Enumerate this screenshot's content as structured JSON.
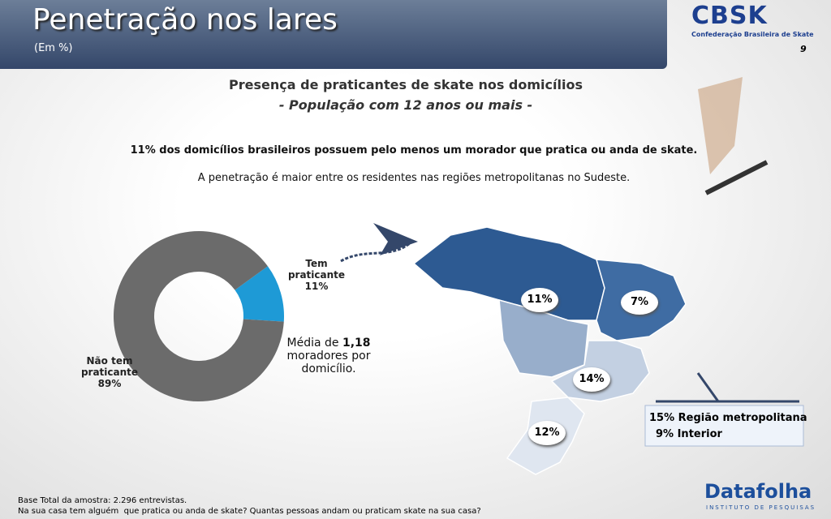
{
  "header": {
    "title": "Penetração nos lares",
    "subtitle": "(Em %)",
    "logo": "CBSK",
    "logo_caption": "Confederação Brasileira de Skate",
    "page": "9"
  },
  "heading": {
    "title": "Presença de praticantes de skate nos domicílios",
    "subtitle": "- População com 12 anos ou mais -"
  },
  "notes": [
    "11% dos domicílios brasileiros possuem pelo menos um morador que pratica ou anda de skate.",
    "A penetração é maior entre os residentes nas regiões metropolitanas no Sudeste."
  ],
  "chart_data": {
    "type": "pie",
    "donut": true,
    "categories": [
      "Tem praticante",
      "Não tem praticante"
    ],
    "values": [
      11,
      89
    ],
    "value_labels": [
      "11%",
      "89%"
    ],
    "colors": [
      "#1e9ad6",
      "#6b6b6b"
    ]
  },
  "average": {
    "prefix": "Média de",
    "value": "1,18",
    "suffix": "moradores por domicílio."
  },
  "map": {
    "regions": [
      {
        "label": "11%"
      },
      {
        "label": "7%"
      },
      {
        "label": "14%"
      },
      {
        "label": "12%"
      }
    ],
    "callout": [
      "15% Região metropolitana",
      "9% Interior"
    ]
  },
  "footer": {
    "base": "Base Total da amostra: 2.296 entrevistas.",
    "question": "Na sua casa tem alguém  que pratica ou anda de skate? Quantas pessoas andam ou praticam skate na sua casa?",
    "brand": "Datafolha",
    "brand_caption": "INSTITUTO DE PESQUISAS"
  }
}
